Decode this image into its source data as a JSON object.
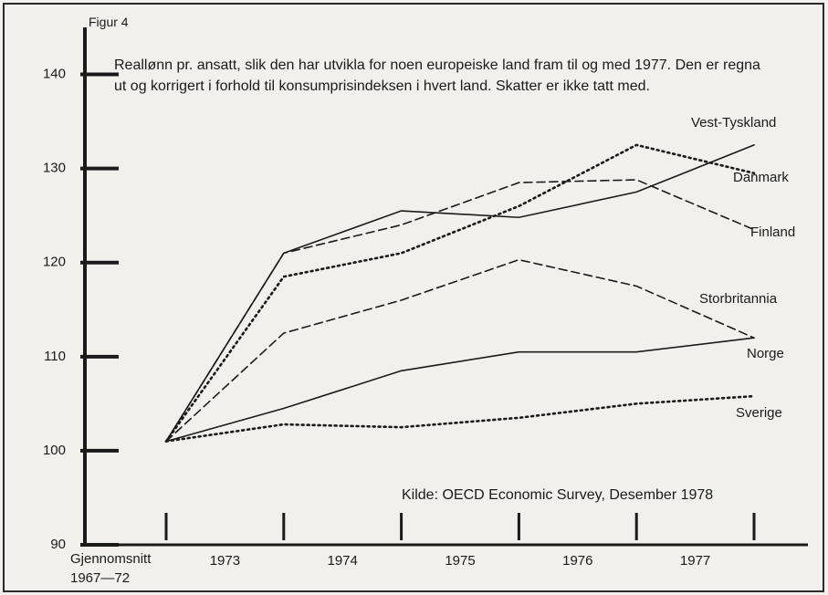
{
  "chart_data": {
    "type": "line",
    "title": "Figur 4",
    "subtitle": "Reallønn pr. ansatt, slik den har utvikla for noen europeiske land fram til og med 1977. Den er regna ut og korrigert i forhold til konsumprisindeksen i hvert land. Skatter er ikke tatt med.",
    "source": "Kilde: OECD Economic Survey, Desember 1978",
    "categories": [
      "Gjennomsnitt 1967—72",
      "1973",
      "1974",
      "1975",
      "1976",
      "1977"
    ],
    "series": [
      {
        "name": "Vest-Tyskland",
        "color": "#1a1a1a",
        "dash": "solid",
        "values": [
          101,
          121,
          125.5,
          124.8,
          127.5,
          132.5
        ]
      },
      {
        "name": "Danmark",
        "color": "#1a1a1a",
        "dash": "dotted",
        "values": [
          101,
          118.5,
          121,
          126,
          132.5,
          129.5
        ]
      },
      {
        "name": "Finland",
        "color": "#1a1a1a",
        "dash": "dashed",
        "values": [
          101,
          121,
          124,
          128.5,
          128.8,
          123.5
        ]
      },
      {
        "name": "Storbritannia",
        "color": "#1a1a1a",
        "dash": "dashed",
        "values": [
          101,
          112.5,
          116,
          120.3,
          117.5,
          112
        ]
      },
      {
        "name": "Norge",
        "color": "#1a1a1a",
        "dash": "solid",
        "values": [
          101,
          104.5,
          108.5,
          110.5,
          110.5,
          112
        ]
      },
      {
        "name": "Sverige",
        "color": "#1a1a1a",
        "dash": "dotted",
        "values": [
          101,
          102.8,
          102.5,
          103.5,
          105,
          105.8
        ]
      }
    ],
    "ylim": [
      90,
      145
    ],
    "yticks": [
      90,
      100,
      110,
      120,
      130,
      140
    ],
    "grid": false
  }
}
